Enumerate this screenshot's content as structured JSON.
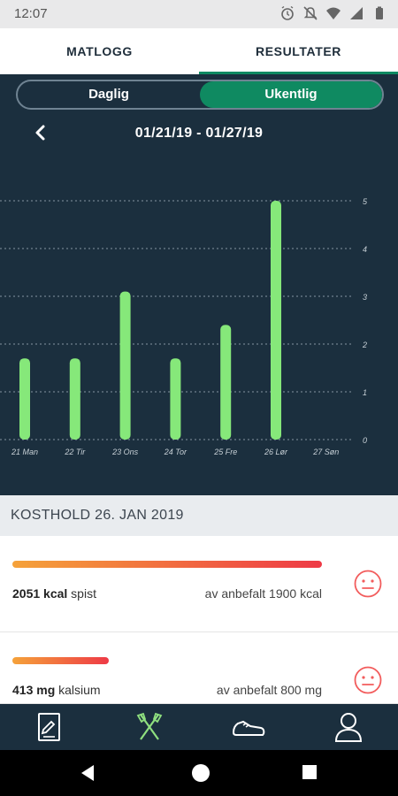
{
  "status_bar": {
    "time": "12:07"
  },
  "top_tabs": [
    {
      "label": "MATLOGG",
      "active": false
    },
    {
      "label": "RESULTATER",
      "active": true
    }
  ],
  "segmented": {
    "daily": "Daglig",
    "weekly": "Ukentlig",
    "active": "weekly"
  },
  "week_nav": {
    "range": "01/21/19 - 01/27/19"
  },
  "chart_data": {
    "type": "bar",
    "categories": [
      "21 Man",
      "22 Tir",
      "23 Ons",
      "24 Tor",
      "25 Fre",
      "26 Lør",
      "27 Søn"
    ],
    "values": [
      1.7,
      1.7,
      3.1,
      1.7,
      2.4,
      5,
      0
    ],
    "yticks": [
      0,
      1,
      2,
      3,
      4,
      5
    ],
    "ylim": [
      0,
      5
    ],
    "grid": true,
    "bar_color": "#86e87a",
    "title": "",
    "xlabel": "",
    "ylabel": ""
  },
  "section": {
    "title": "KOSTHOLD 26. JAN 2019"
  },
  "nutrients": [
    {
      "amount": "2051 kcal",
      "label": " spist",
      "recommended": "av anbefalt 1900 kcal",
      "fill": 1.0
    },
    {
      "amount": "413 mg",
      "label": " kalsium",
      "recommended": "av anbefalt 800 mg",
      "fill": 0.31
    }
  ],
  "colors": {
    "accent": "#0f8a61",
    "dark": "#1b2f3e",
    "warn": "#f25c5c",
    "gradient_start": "#f5a23a",
    "gradient_end": "#ee3a46"
  },
  "bottom_nav_icons": [
    "diary-icon",
    "fork-knife-icon",
    "shoe-icon",
    "profile-icon"
  ]
}
